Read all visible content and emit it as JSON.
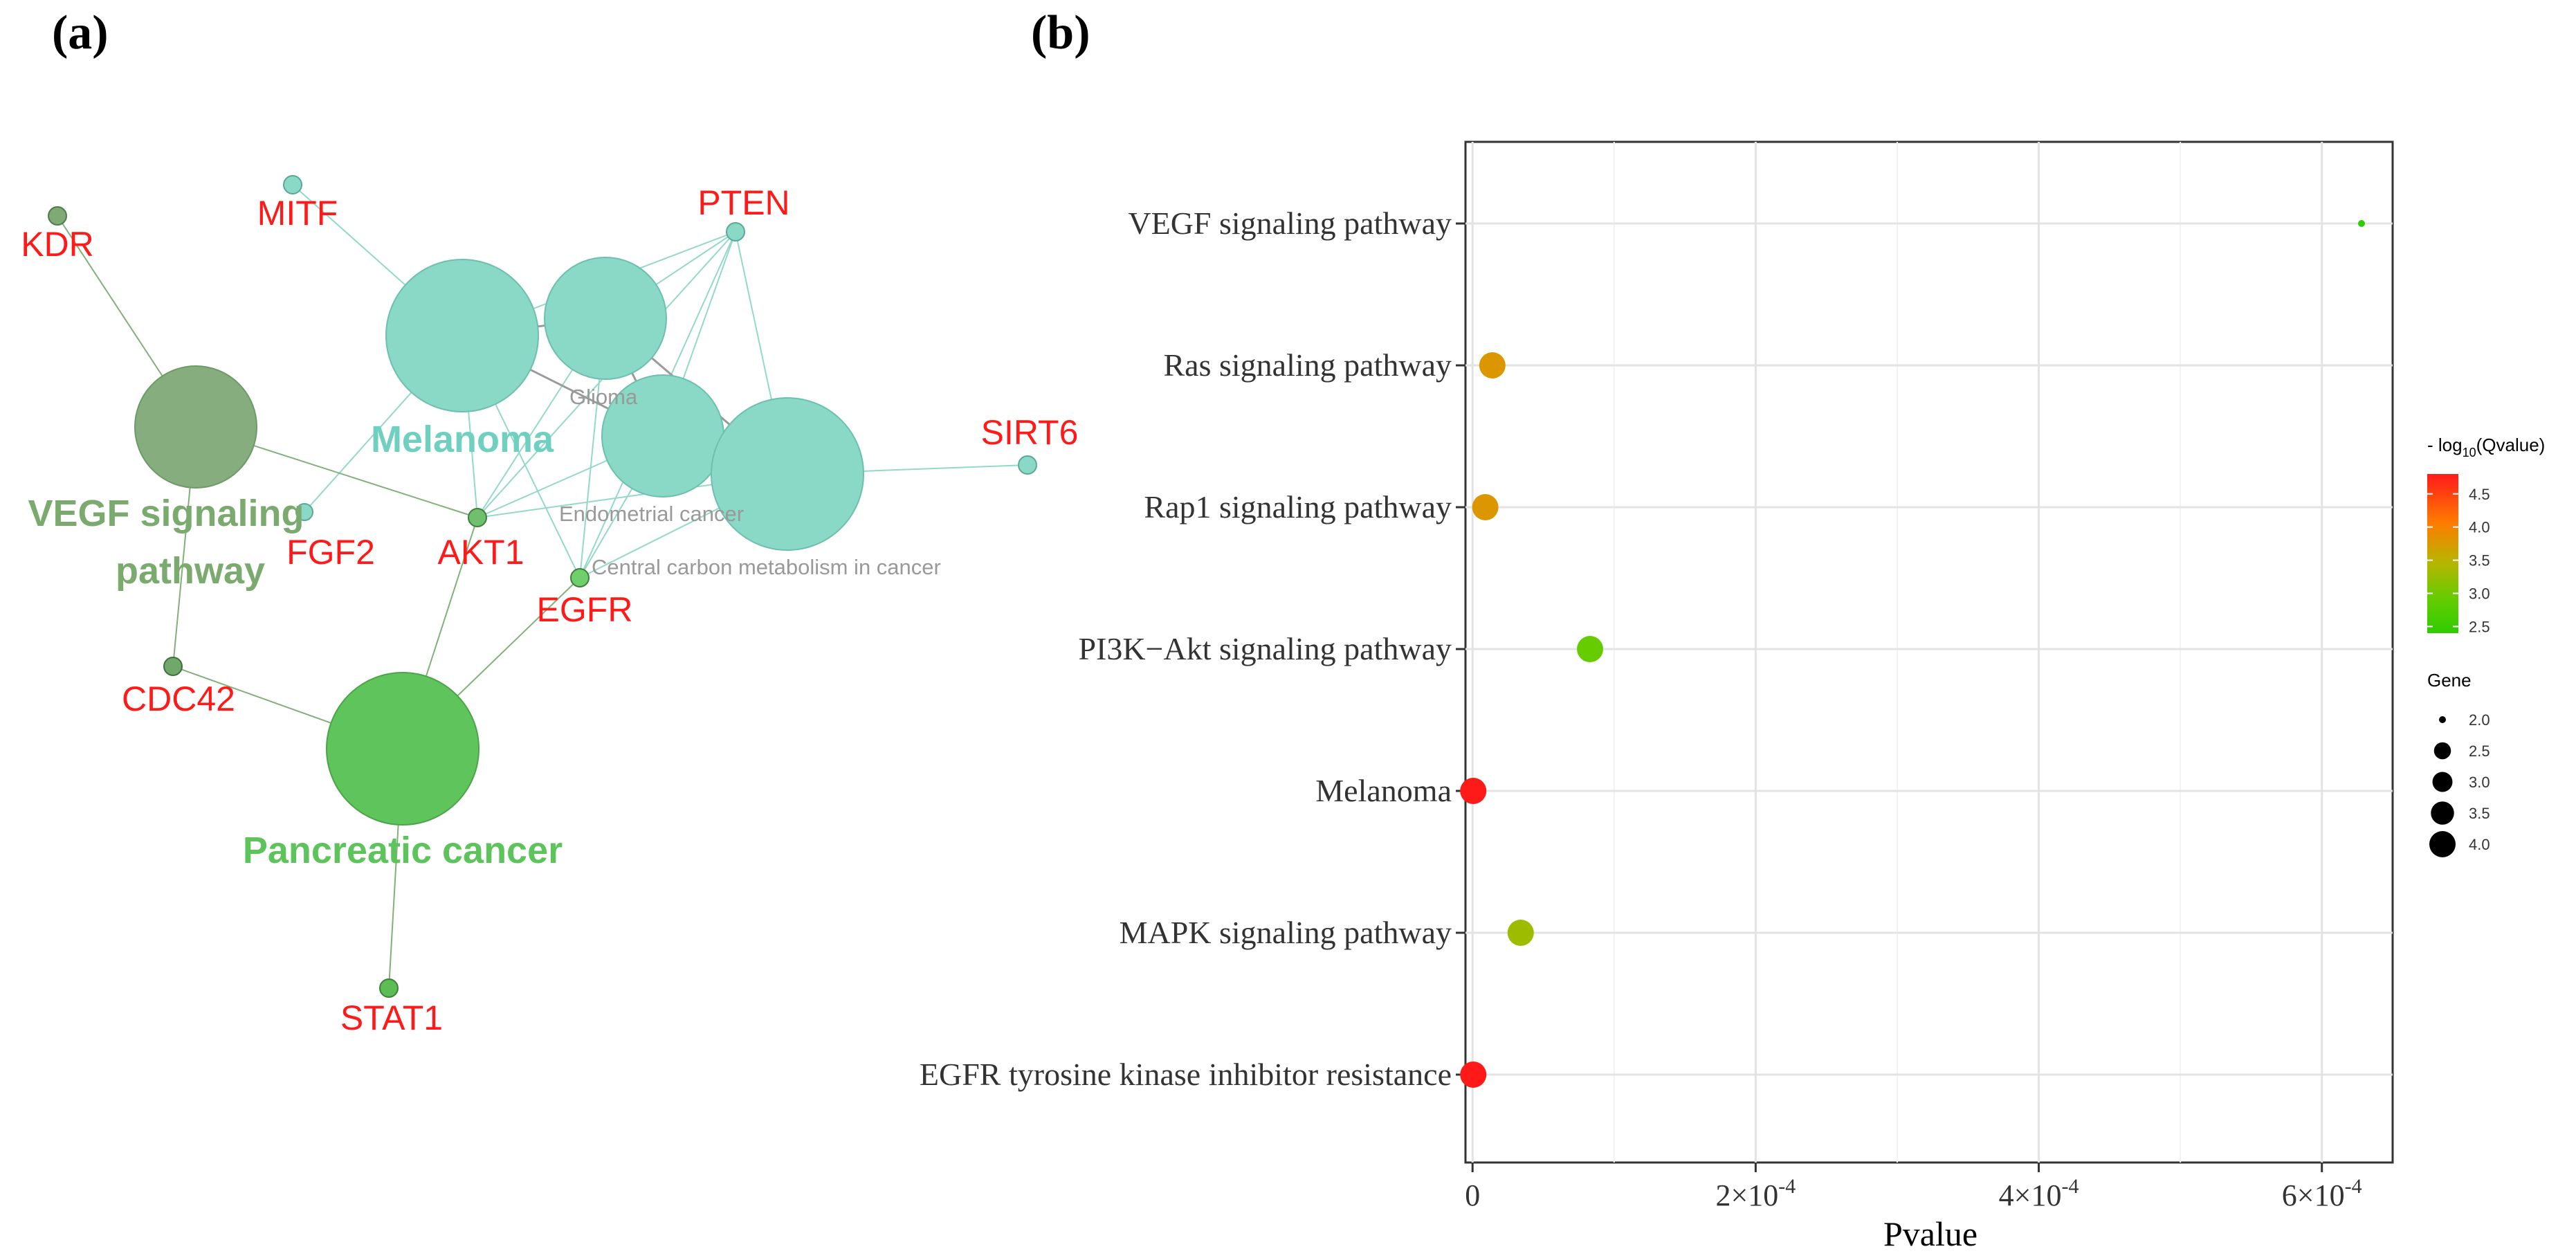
{
  "panel_a": {
    "label": "(a)",
    "colors": {
      "melanoma": "#75d1c0",
      "vegf": "#7fa975",
      "pancreatic": "#5bbf54",
      "gene": "#ff1a1a",
      "small_label": "#999999"
    },
    "pathways": [
      {
        "id": "vegf",
        "label_lines": [
          "VEGF signaling",
          "pathway"
        ],
        "color": "#78a873",
        "label_color": "#7aaa6d"
      },
      {
        "id": "melanoma",
        "label_lines": [
          "Melanoma"
        ],
        "color": "#8ad8c6",
        "label_color": "#6fd0bf"
      },
      {
        "id": "glioma",
        "label_lines": [
          "Glioma"
        ],
        "color": "#8ad8c6",
        "label_color": "#999999"
      },
      {
        "id": "endometrial",
        "label_lines": [
          "Endometrial cancer"
        ],
        "color": "#8ad8c6",
        "label_color": "#999999"
      },
      {
        "id": "central",
        "label_lines": [
          "Central carbon metabolism in cancer"
        ],
        "color": "#8ad8c6",
        "label_color": "#999999"
      },
      {
        "id": "pancreatic",
        "label_lines": [
          "Pancreatic cancer"
        ],
        "color": "#5cc45a",
        "label_color": "#5cc45a"
      }
    ],
    "genes": [
      "KDR",
      "MITF",
      "PTEN",
      "SIRT6",
      "FGF2",
      "AKT1",
      "EGFR",
      "CDC42",
      "STAT1"
    ]
  },
  "panel_b": {
    "label": "(b)",
    "chart_data": {
      "type": "scatter",
      "title": "",
      "xlabel": "Pvalue",
      "ylabel": "",
      "xlim": [
        -5e-06,
        0.00065
      ],
      "x_ticks": [
        {
          "value": 0,
          "label": "0"
        },
        {
          "value": 0.0002,
          "label": "2×10",
          "exp": "-4"
        },
        {
          "value": 0.0004,
          "label": "4×10",
          "exp": "-4"
        },
        {
          "value": 0.0006,
          "label": "6×10",
          "exp": "-4"
        }
      ],
      "categories": [
        "VEGF signaling pathway",
        "Ras signaling pathway",
        "Rap1 signaling pathway",
        "PI3K−Akt signaling pathway",
        "Melanoma",
        "MAPK signaling pathway",
        "EGFR tyrosine kinase inhibitor resistance"
      ],
      "points": [
        {
          "category": "VEGF signaling pathway",
          "pvalue": 0.000628,
          "gene": 2,
          "neglog10q": 2.4
        },
        {
          "category": "Ras signaling pathway",
          "pvalue": 1.4e-05,
          "gene": 3,
          "neglog10q": 3.8
        },
        {
          "category": "Rap1 signaling pathway",
          "pvalue": 9e-06,
          "gene": 3,
          "neglog10q": 3.8
        },
        {
          "category": "PI3K−Akt signaling pathway",
          "pvalue": 8.3e-05,
          "gene": 3,
          "neglog10q": 2.9
        },
        {
          "category": "Melanoma",
          "pvalue": 5e-07,
          "gene": 3,
          "neglog10q": 4.8
        },
        {
          "category": "MAPK signaling pathway",
          "pvalue": 3.4e-05,
          "gene": 3,
          "neglog10q": 3.3
        },
        {
          "category": "EGFR tyrosine kinase inhibitor resistance",
          "pvalue": 5e-07,
          "gene": 3,
          "neglog10q": 4.8
        }
      ],
      "color_legend": {
        "title": "- log",
        "title_sub": "10",
        "title_rest": "(Qvalue)",
        "range": [
          2.4,
          4.8
        ],
        "ticks": [
          "4.5",
          "4.0",
          "3.5",
          "3.0",
          "2.5"
        ],
        "colors": [
          "#ff1a1a",
          "#ff8000",
          "#b4b400",
          "#66cc00",
          "#33cc00"
        ]
      },
      "size_legend": {
        "title": "Gene",
        "entries": [
          "2.0",
          "2.5",
          "3.0",
          "3.5",
          "4.0"
        ]
      }
    }
  }
}
